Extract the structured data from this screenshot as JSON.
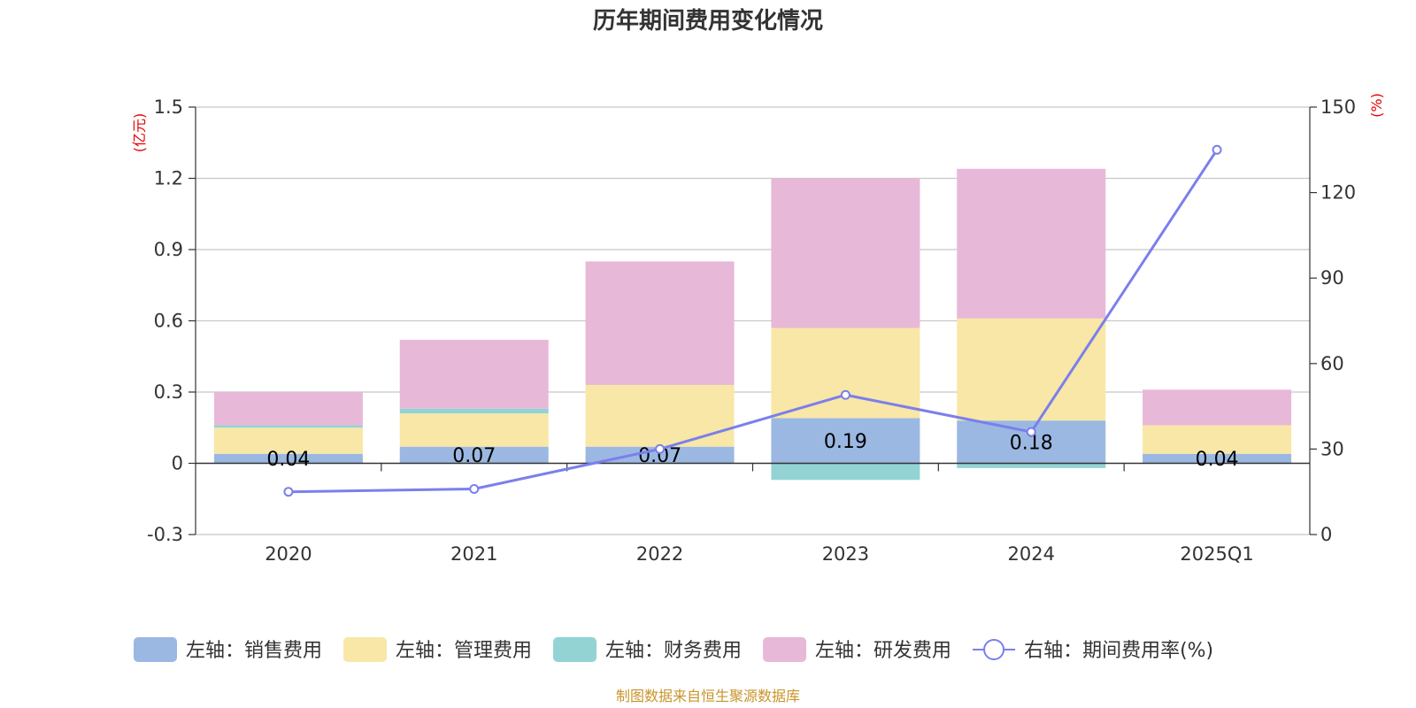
{
  "title": "历年期间费用变化情况",
  "source": "制图数据来自恒生聚源数据库",
  "units": {
    "left": "(亿元)",
    "right": "(%)"
  },
  "colors": {
    "selling": "#9bb8e2",
    "admin": "#f8e7a6",
    "finance": "#93d3d3",
    "rnd": "#e8b8d8",
    "rate": "#7b7fec",
    "grid": "#c8c8c8",
    "axis": "#333333"
  },
  "legend": [
    {
      "key": "selling",
      "label": "左轴：销售费用",
      "type": "bar"
    },
    {
      "key": "admin",
      "label": "左轴：管理费用",
      "type": "bar"
    },
    {
      "key": "finance",
      "label": "左轴：财务费用",
      "type": "bar"
    },
    {
      "key": "rnd",
      "label": "左轴：研发费用",
      "type": "bar"
    },
    {
      "key": "rate",
      "label": "右轴：期间费用率(%)",
      "type": "line"
    }
  ],
  "chart_data": {
    "type": "bar",
    "categories": [
      "2020",
      "2021",
      "2022",
      "2023",
      "2024",
      "2025Q1"
    ],
    "y_left": {
      "min": -0.3,
      "max": 1.5,
      "ticks": [
        "-0.3",
        "0",
        "0.3",
        "0.6",
        "0.9",
        "1.2",
        "1.5"
      ]
    },
    "y_right": {
      "min": 0,
      "max": 150,
      "ticks": [
        "0",
        "30",
        "60",
        "90",
        "120",
        "150"
      ]
    },
    "series": [
      {
        "name": "左轴：销售费用",
        "key": "selling",
        "axis": "left",
        "values": [
          0.04,
          0.07,
          0.07,
          0.19,
          0.18,
          0.04
        ],
        "labels": [
          "0.04",
          "0.07",
          "0.07",
          "0.19",
          "0.18",
          "0.04"
        ]
      },
      {
        "name": "左轴：管理费用",
        "key": "admin",
        "axis": "left",
        "values": [
          0.11,
          0.14,
          0.26,
          0.38,
          0.43,
          0.12
        ]
      },
      {
        "name": "左轴：财务费用",
        "key": "finance",
        "axis": "left",
        "values": [
          0.01,
          0.02,
          0.0,
          -0.07,
          -0.02,
          0.0
        ]
      },
      {
        "name": "左轴：研发费用",
        "key": "rnd",
        "axis": "left",
        "values": [
          0.14,
          0.29,
          0.52,
          0.63,
          0.63,
          0.15
        ]
      },
      {
        "name": "右轴：期间费用率(%)",
        "key": "rate",
        "axis": "right",
        "type": "line",
        "values": [
          15,
          16,
          30,
          49,
          36,
          135
        ]
      }
    ],
    "grid": true,
    "legend_position": "bottom"
  }
}
